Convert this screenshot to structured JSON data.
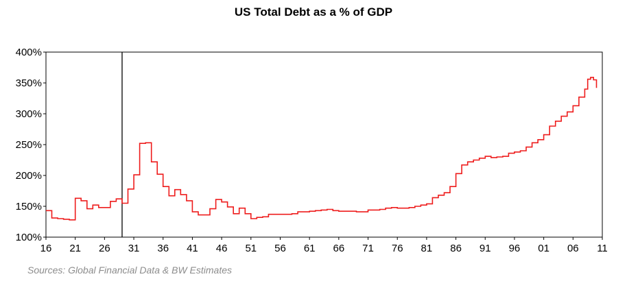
{
  "chart_data": {
    "type": "line",
    "title": "US Total Debt as a % of GDP",
    "xlabel": "",
    "ylabel": "",
    "ylim": [
      100,
      400
    ],
    "xlim": [
      1916,
      2011
    ],
    "y_ticks": [
      "100%",
      "150%",
      "200%",
      "250%",
      "300%",
      "350%",
      "400%"
    ],
    "x_ticks": [
      "16",
      "21",
      "26",
      "31",
      "36",
      "41",
      "46",
      "51",
      "56",
      "61",
      "66",
      "71",
      "76",
      "81",
      "86",
      "91",
      "96",
      "01",
      "06",
      "11"
    ],
    "grid": false,
    "legend": "none",
    "series_color": "#ee1c1c",
    "reference_line": {
      "x": 1929
    },
    "series": [
      {
        "x": [
          1916,
          1917,
          1918,
          1919,
          1920,
          1921,
          1922,
          1923,
          1924,
          1925,
          1926,
          1927,
          1928,
          1929,
          1930,
          1931,
          1932,
          1933,
          1934,
          1935,
          1936,
          1937,
          1938,
          1939,
          1940,
          1941,
          1942,
          1943,
          1944,
          1945,
          1946,
          1947,
          1948,
          1949,
          1950,
          1951,
          1952,
          1953,
          1954,
          1955,
          1956,
          1957,
          1958,
          1959,
          1960,
          1961,
          1962,
          1963,
          1964,
          1965,
          1966,
          1967,
          1968,
          1969,
          1970,
          1971,
          1972,
          1973,
          1974,
          1975,
          1976,
          1977,
          1978,
          1979,
          1980,
          1981,
          1982,
          1983,
          1984,
          1985,
          1986,
          1987,
          1988,
          1989,
          1990,
          1991,
          1992,
          1993,
          1994,
          1995,
          1996,
          1997,
          1998,
          1999,
          2000,
          2001,
          2002,
          2003,
          2004,
          2005,
          2006,
          2007,
          2008,
          2008.5,
          2009,
          2009.5,
          2010
        ],
        "values": [
          143,
          131,
          130,
          129,
          128,
          163,
          159,
          146,
          152,
          148,
          148,
          158,
          162,
          155,
          178,
          201,
          252,
          253,
          222,
          202,
          182,
          167,
          177,
          169,
          159,
          141,
          136,
          136,
          146,
          161,
          157,
          149,
          138,
          147,
          138,
          130,
          132,
          133,
          137,
          137,
          137,
          137,
          138,
          141,
          141,
          142,
          143,
          144,
          145,
          143,
          142,
          142,
          142,
          141,
          141,
          144,
          144,
          145,
          147,
          148,
          147,
          147,
          148,
          150,
          152,
          154,
          164,
          168,
          172,
          182,
          203,
          217,
          222,
          225,
          228,
          231,
          229,
          230,
          231,
          236,
          238,
          240,
          246,
          253,
          258,
          266,
          280,
          288,
          296,
          303,
          313,
          327,
          340,
          356,
          359,
          355,
          342
        ]
      }
    ]
  },
  "source_note": "Sources: Global Financial Data & BW Estimates"
}
